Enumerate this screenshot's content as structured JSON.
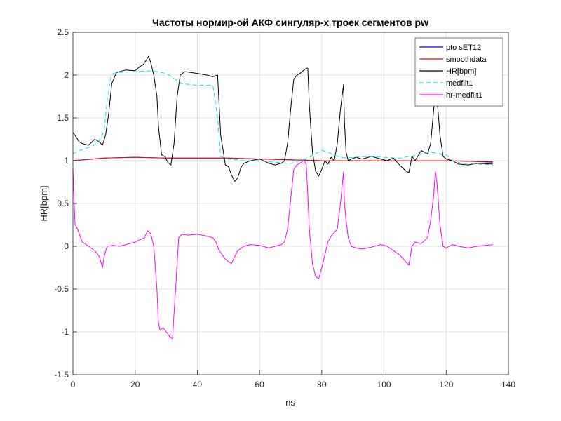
{
  "chart_data": {
    "type": "line",
    "title": "Частоты нормир-ой АКФ сингуляр-х троек сегментов pw",
    "xlabel": "ns",
    "ylabel": "HR[bpm]",
    "xlim": [
      0,
      140
    ],
    "ylim": [
      -1.5,
      2.5
    ],
    "xticks": [
      0,
      20,
      40,
      60,
      80,
      100,
      120,
      140
    ],
    "yticks": [
      -1.5,
      -1,
      -0.5,
      0,
      0.5,
      1,
      1.5,
      2,
      2.5
    ],
    "grid": true,
    "legend_position": "top-right",
    "series": [
      {
        "name": "pto sET12",
        "color": "#0000ff",
        "style": "solid",
        "x": [
          0,
          10,
          20,
          30,
          40,
          50,
          60,
          70,
          80,
          90,
          100,
          110,
          120,
          130,
          135
        ],
        "y": [
          1.0,
          1.03,
          1.04,
          1.03,
          1.03,
          1.03,
          1.02,
          1.01,
          1.0,
          1.0,
          1.0,
          1.0,
          1.0,
          0.99,
          0.99
        ]
      },
      {
        "name": "smoothdata",
        "color": "#ff0000",
        "style": "solid",
        "x": [
          0,
          10,
          20,
          30,
          40,
          50,
          60,
          70,
          80,
          90,
          100,
          110,
          120,
          130,
          135
        ],
        "y": [
          1.0,
          1.03,
          1.04,
          1.03,
          1.03,
          1.03,
          1.02,
          1.01,
          1.0,
          1.0,
          1.0,
          1.0,
          1.0,
          0.99,
          0.98
        ]
      },
      {
        "name": "HR[bpm]",
        "color": "#000000",
        "style": "solid",
        "x": [
          0,
          1,
          2,
          3,
          5,
          7,
          8.5,
          9.5,
          10.5,
          11.5,
          12.5,
          14,
          17,
          20,
          21.5,
          22.5,
          23.5,
          24.3,
          25,
          26,
          27,
          27.5,
          28.5,
          29.5,
          30.5,
          31.5,
          32.5,
          33.5,
          34.5,
          36,
          40,
          43,
          45,
          46.5,
          47.5,
          49,
          50,
          51,
          52,
          53,
          54,
          55,
          57,
          60,
          63,
          65,
          67,
          68,
          69,
          70,
          71,
          72,
          73,
          74,
          75,
          75.5,
          76,
          77,
          78,
          79,
          80,
          81,
          82,
          83,
          84,
          85,
          86,
          87,
          87.3,
          87.8,
          88.5,
          89.5,
          91,
          93,
          96,
          99,
          101,
          103,
          105,
          107,
          108,
          109,
          110,
          112,
          114,
          115,
          116,
          116.5,
          117,
          118,
          119,
          120,
          122,
          124,
          127,
          130,
          135
        ],
        "y": [
          1.33,
          1.28,
          1.22,
          1.2,
          1.18,
          1.25,
          1.22,
          1.18,
          1.3,
          1.55,
          1.9,
          2.03,
          2.06,
          2.05,
          2.1,
          2.12,
          2.17,
          2.22,
          2.15,
          2.0,
          1.75,
          1.4,
          1.07,
          1.05,
          0.98,
          0.95,
          1.2,
          1.75,
          2.0,
          2.04,
          2.02,
          2.0,
          1.98,
          2.0,
          1.3,
          0.95,
          0.93,
          0.83,
          0.76,
          0.8,
          0.92,
          0.97,
          1.0,
          1.02,
          0.97,
          0.95,
          0.97,
          1.0,
          1.2,
          1.6,
          1.95,
          2.0,
          2.02,
          2.05,
          2.08,
          2.08,
          1.65,
          1.1,
          0.88,
          0.82,
          0.9,
          1.0,
          0.96,
          1.04,
          1.0,
          1.2,
          1.6,
          1.89,
          1.45,
          1.1,
          1.0,
          1.02,
          1.04,
          1.02,
          1.05,
          1.02,
          1.0,
          1.03,
          0.95,
          0.88,
          0.86,
          1.05,
          1.0,
          1.12,
          1.08,
          1.2,
          1.6,
          1.9,
          1.75,
          1.3,
          1.05,
          1.02,
          1.0,
          0.96,
          0.95,
          0.97,
          0.96
        ]
      },
      {
        "name": "medfilt1",
        "color": "#00e5ee",
        "style": "dashed",
        "x": [
          0,
          1,
          2,
          4,
          6,
          8,
          10,
          11,
          12,
          13,
          15,
          20,
          25,
          30,
          35,
          40,
          45,
          46.5,
          47.5,
          50,
          55,
          60,
          65,
          70,
          75,
          78,
          80,
          82,
          85,
          88,
          90,
          95,
          100,
          105,
          110,
          115,
          118,
          120,
          122,
          125,
          130,
          135
        ],
        "y": [
          1.08,
          1.1,
          1.12,
          1.14,
          1.17,
          1.2,
          1.35,
          1.7,
          1.95,
          2.02,
          2.03,
          2.04,
          2.05,
          2.02,
          1.9,
          1.88,
          1.88,
          1.5,
          1.05,
          1.02,
          1.0,
          1.0,
          0.98,
          0.97,
          1.02,
          1.08,
          1.12,
          1.1,
          1.05,
          1.03,
          1.04,
          1.05,
          1.04,
          1.03,
          1.06,
          1.1,
          1.08,
          1.07,
          1.0,
          0.97,
          0.96,
          0.95
        ]
      },
      {
        "name": "hr-medfilt1",
        "color": "#ff00ff",
        "style": "solid",
        "x": [
          0,
          0.3,
          0.7,
          1.5,
          3,
          5,
          7,
          8.5,
          9.5,
          10,
          11,
          13,
          15,
          17,
          20,
          23,
          24,
          25,
          26,
          27,
          27.5,
          28,
          29,
          30,
          31,
          32,
          33,
          34,
          35,
          37,
          40,
          43,
          45,
          46,
          47,
          49,
          50,
          51,
          52,
          53,
          55,
          57,
          60,
          63,
          65,
          67,
          68,
          69,
          70,
          71,
          72,
          73,
          74,
          74.5,
          75,
          75.5,
          76,
          77,
          78,
          79,
          80,
          81,
          82,
          83,
          85,
          86,
          87,
          87.3,
          87.8,
          88.5,
          89.5,
          91,
          93,
          96,
          99,
          101,
          103,
          105,
          107,
          108,
          109,
          110,
          112,
          114,
          115,
          116,
          116.5,
          117,
          118,
          119,
          120,
          122,
          124,
          127,
          130,
          135
        ],
        "y": [
          0.9,
          0.6,
          0.25,
          0.2,
          0.05,
          0.0,
          -0.05,
          -0.12,
          -0.25,
          -0.12,
          0.0,
          0.01,
          0.0,
          0.02,
          0.05,
          0.1,
          0.18,
          0.15,
          0.0,
          -0.5,
          -0.9,
          -0.98,
          -0.95,
          -1.0,
          -1.05,
          -1.08,
          -0.5,
          0.1,
          0.14,
          0.13,
          0.14,
          0.12,
          0.1,
          0.05,
          -0.05,
          -0.15,
          -0.18,
          -0.2,
          -0.12,
          -0.05,
          0.0,
          0.02,
          0.01,
          -0.02,
          0.0,
          0.02,
          0.05,
          0.2,
          0.55,
          0.9,
          0.95,
          0.97,
          1.0,
          1.0,
          0.95,
          0.6,
          0.2,
          -0.2,
          -0.35,
          -0.38,
          -0.25,
          -0.1,
          0.05,
          0.12,
          0.2,
          0.5,
          0.87,
          0.5,
          0.3,
          0.1,
          0.0,
          -0.02,
          -0.03,
          -0.01,
          0.02,
          0.0,
          -0.05,
          -0.1,
          -0.18,
          -0.22,
          0.0,
          0.05,
          0.03,
          0.1,
          0.3,
          0.6,
          0.87,
          0.75,
          0.25,
          0.0,
          -0.02,
          0.02,
          0.0,
          -0.02,
          0.0,
          0.02
        ]
      }
    ]
  }
}
